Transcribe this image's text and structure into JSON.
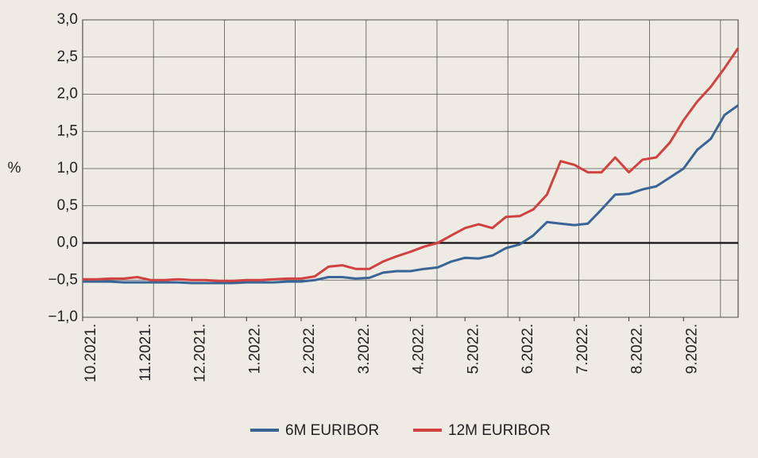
{
  "chart_data": {
    "type": "line",
    "y_label": "%",
    "categories": [
      "10.2021.",
      null,
      null,
      null,
      "11.2021.",
      null,
      null,
      null,
      "12.2021.",
      null,
      null,
      null,
      "1.2022.",
      null,
      null,
      null,
      "2.2022.",
      null,
      null,
      null,
      "3.2022.",
      null,
      null,
      null,
      "4.2022.",
      null,
      null,
      null,
      "5.2022.",
      null,
      null,
      null,
      "6.2022.",
      null,
      null,
      null,
      "7.2022.",
      null,
      null,
      null,
      "8.2022.",
      null,
      null,
      null,
      "9.2022.",
      null,
      null,
      null,
      null
    ],
    "series": [
      {
        "name": "6M EURIBOR",
        "color": "#3a6496",
        "values": [
          -0.52,
          -0.52,
          -0.52,
          -0.53,
          -0.53,
          -0.53,
          -0.53,
          -0.53,
          -0.54,
          -0.54,
          -0.54,
          -0.54,
          -0.53,
          -0.53,
          -0.53,
          -0.52,
          -0.52,
          -0.5,
          -0.46,
          -0.46,
          -0.48,
          -0.47,
          -0.4,
          -0.38,
          -0.38,
          -0.35,
          -0.33,
          -0.25,
          -0.2,
          -0.21,
          -0.17,
          -0.07,
          -0.02,
          0.1,
          0.28,
          0.26,
          0.24,
          0.26,
          0.45,
          0.65,
          0.66,
          0.72,
          0.76,
          0.88,
          1.0,
          1.25,
          1.4,
          1.72,
          1.85
        ]
      },
      {
        "name": "12M EURIBOR",
        "color": "#d0413f",
        "values": [
          -0.49,
          -0.49,
          -0.48,
          -0.48,
          -0.46,
          -0.5,
          -0.5,
          -0.49,
          -0.5,
          -0.5,
          -0.51,
          -0.51,
          -0.5,
          -0.5,
          -0.49,
          -0.48,
          -0.48,
          -0.45,
          -0.32,
          -0.3,
          -0.35,
          -0.35,
          -0.25,
          -0.18,
          -0.12,
          -0.05,
          0.0,
          0.1,
          0.2,
          0.25,
          0.2,
          0.35,
          0.36,
          0.45,
          0.65,
          1.1,
          1.05,
          0.95,
          0.95,
          1.15,
          0.95,
          1.12,
          1.15,
          1.35,
          1.65,
          1.9,
          2.1,
          2.35,
          2.62
        ]
      }
    ],
    "ylim": [
      -1,
      3
    ],
    "yticks": [
      {
        "value": 3,
        "label": "3,0"
      },
      {
        "value": 2.5,
        "label": "2,5"
      },
      {
        "value": 2,
        "label": "2,0"
      },
      {
        "value": 1.5,
        "label": "1,5"
      },
      {
        "value": 1,
        "label": "1,0"
      },
      {
        "value": 0.5,
        "label": "0,5"
      },
      {
        "value": 0,
        "label": "0,0"
      },
      {
        "value": -0.5,
        "label": "−0,5"
      },
      {
        "value": -1,
        "label": "−1,0"
      }
    ],
    "grid": true
  }
}
